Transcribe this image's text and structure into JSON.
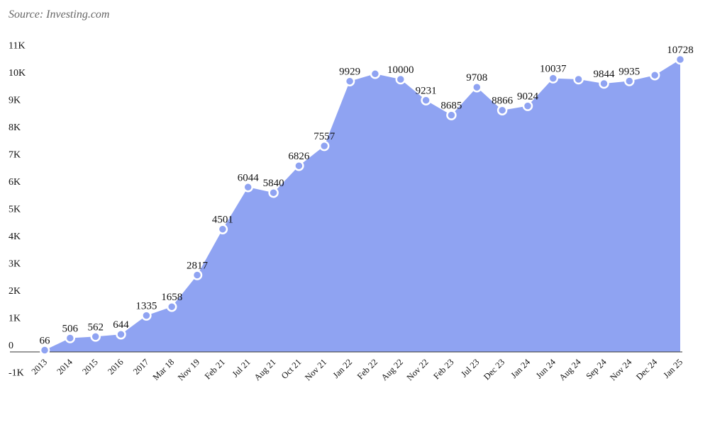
{
  "source_note": "Source: Investing.com",
  "colors": {
    "area": "#8fa3f2",
    "point": "#8fa3f2",
    "point_stroke": "#ffffff",
    "baseline": "#333333"
  },
  "chart_data": {
    "type": "area",
    "categories": [
      "2013",
      "2014",
      "2015",
      "2016",
      "2017",
      "Mar 18",
      "Nov 19",
      "Feb 21",
      "Jul 21",
      "Aug 21",
      "Oct 21",
      "Nov 21",
      "Jan 22",
      "Feb 22",
      "Aug 22",
      "Nov 22",
      "Feb 23",
      "Jul 23",
      "Dec 23",
      "Jan 24",
      "Jun 24",
      "Aug 24",
      "Sep 24",
      "Nov 24",
      "Dec 24",
      "Jan 25"
    ],
    "values": [
      66,
      506,
      562,
      644,
      1335,
      1658,
      2817,
      4501,
      6044,
      5840,
      6826,
      7557,
      9929,
      10200,
      10000,
      9231,
      8685,
      9708,
      8866,
      9024,
      10037,
      10000,
      9844,
      9935,
      10150,
      10728
    ],
    "data_labels": [
      "66",
      "506",
      "562",
      "644",
      "1335",
      "1658",
      "2817",
      "4501",
      "6044",
      "5840",
      "6826",
      "7557",
      "9929",
      "",
      "10000",
      "9231",
      "8685",
      "9708",
      "8866",
      "9024",
      "10037",
      "",
      "9844",
      "9935",
      "",
      "10728"
    ],
    "y_ticks": [
      "-1K",
      "0",
      "1K",
      "2K",
      "3K",
      "4K",
      "5K",
      "6K",
      "7K",
      "8K",
      "9K",
      "10K",
      "11K"
    ],
    "ylim": [
      -1000,
      11000
    ],
    "grid": false
  }
}
